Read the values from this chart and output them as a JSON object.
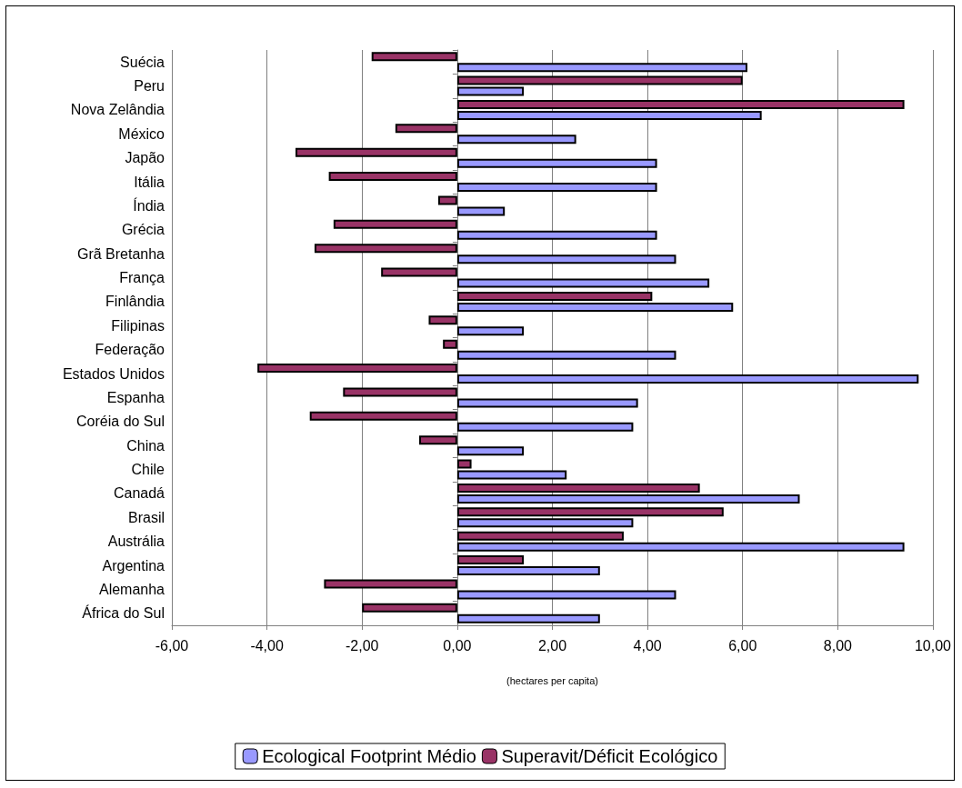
{
  "chart_data": {
    "type": "bar",
    "orientation": "horizontal",
    "xlabel": "(hectares per capita)",
    "categories": [
      "Suécia",
      "Peru",
      "Nova Zelândia",
      "México",
      "Japão",
      "Itália",
      "Índia",
      "Grécia",
      "Grã Bretanha",
      "França",
      "Finlândia",
      "Filipinas",
      "Federação",
      "Estados Unidos",
      "Espanha",
      "Coréia do Sul",
      "China",
      "Chile",
      "Canadá",
      "Brasil",
      "Austrália",
      "Argentina",
      "Alemanha",
      "África do Sul"
    ],
    "series": [
      {
        "name": "Ecological Footprint Médio",
        "color": "#9999ff",
        "values": [
          6.1,
          1.4,
          6.4,
          2.5,
          4.2,
          4.2,
          1.0,
          4.2,
          4.6,
          5.3,
          5.8,
          1.4,
          4.6,
          9.7,
          3.8,
          3.7,
          1.4,
          2.3,
          7.2,
          3.7,
          9.4,
          3.0,
          4.6,
          3.0
        ]
      },
      {
        "name": "Superavit/Déficit Ecológico",
        "color": "#993366",
        "values": [
          -1.8,
          6.0,
          9.4,
          -1.3,
          -3.4,
          -2.7,
          -0.4,
          -2.6,
          -3.0,
          -1.6,
          4.1,
          -0.6,
          -0.3,
          -4.2,
          -2.4,
          -3.1,
          -0.8,
          0.3,
          5.1,
          5.6,
          3.5,
          1.4,
          -2.8,
          -2.0
        ]
      }
    ],
    "xlim": [
      -6,
      10
    ],
    "xticks": [
      {
        "value": -6,
        "label": "-6,00"
      },
      {
        "value": -4,
        "label": "-4,00"
      },
      {
        "value": -2,
        "label": "-2,00"
      },
      {
        "value": 0,
        "label": "0,00"
      },
      {
        "value": 2,
        "label": "2,00"
      },
      {
        "value": 4,
        "label": "4,00"
      },
      {
        "value": 6,
        "label": "6,00"
      },
      {
        "value": 8,
        "label": "8,00"
      },
      {
        "value": 10,
        "label": "10,00"
      }
    ],
    "grid": "x",
    "legend": "bottom"
  }
}
